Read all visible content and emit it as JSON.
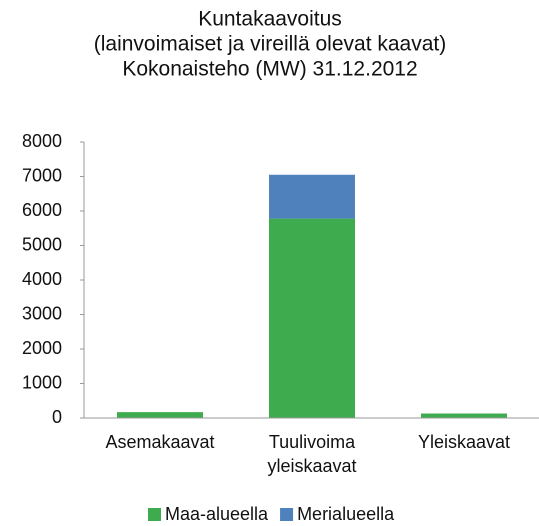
{
  "chart_data": {
    "type": "stacked_bar",
    "title": [
      "Kuntakaavoitus",
      "(lainvoimaiset ja vireillä olevat kaavat)",
      "Kokonaisteho (MW) 31.12.2012"
    ],
    "categories": [
      "Asemakaavat",
      "Tuulivoima yleiskaavat",
      "Yleiskaavat"
    ],
    "series": [
      {
        "name": "Maa-alueella",
        "color": "#3fab4f",
        "values": [
          170,
          5780,
          130
        ]
      },
      {
        "name": "Merialueella",
        "color": "#4f81bd",
        "values": [
          0,
          1270,
          0
        ]
      }
    ],
    "ylim": [
      0,
      8000
    ],
    "yticks": [
      0,
      1000,
      2000,
      3000,
      4000,
      5000,
      6000,
      7000,
      8000
    ],
    "grid": false,
    "legend": "bottom"
  }
}
